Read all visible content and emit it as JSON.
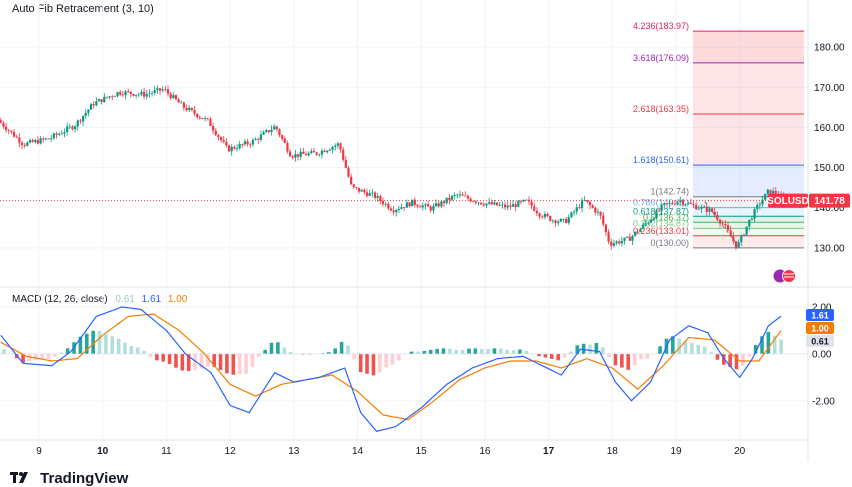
{
  "header": {
    "title": "Auto Fib Retracement (3, 10)"
  },
  "macd": {
    "title": "MACD (12, 26, close)",
    "hist_value": "0.61",
    "macd_value": "1.61",
    "signal_value": "1.00",
    "colors": {
      "macd": "#2962ff",
      "signal": "#f57c00",
      "hist_pos": "#26a69a",
      "hist_neg": "#ef5350"
    }
  },
  "footer": {
    "brand": "TradingView"
  },
  "chart_data": [
    {
      "type": "candlestick",
      "title": "Auto Fib Retracement (3, 10)",
      "symbol": "SOLUSD",
      "last_price": "141.78",
      "x_ticks": [
        "9",
        "10",
        "11",
        "12",
        "13",
        "14",
        "15",
        "16",
        "17",
        "18",
        "19",
        "20"
      ],
      "y_ticks": [
        "130.00",
        "140.00",
        "150.00",
        "160.00",
        "170.00",
        "180.00"
      ],
      "ylim": [
        122,
        188
      ],
      "price_path": [
        {
          "d": 8.4,
          "p": 161.8
        },
        {
          "d": 8.8,
          "p": 155.8
        },
        {
          "d": 9.2,
          "p": 157.2
        },
        {
          "d": 9.6,
          "p": 160.5
        },
        {
          "d": 9.9,
          "p": 166.0
        },
        {
          "d": 10.3,
          "p": 168.8
        },
        {
          "d": 10.7,
          "p": 168.2
        },
        {
          "d": 11.0,
          "p": 169.5
        },
        {
          "d": 11.3,
          "p": 165.2
        },
        {
          "d": 11.7,
          "p": 161.5
        },
        {
          "d": 12.0,
          "p": 154.5
        },
        {
          "d": 12.4,
          "p": 156.5
        },
        {
          "d": 12.75,
          "p": 160.3
        },
        {
          "d": 13.0,
          "p": 153.0
        },
        {
          "d": 13.4,
          "p": 153.6
        },
        {
          "d": 13.75,
          "p": 155.9
        },
        {
          "d": 13.95,
          "p": 145.0
        },
        {
          "d": 14.3,
          "p": 143.0
        },
        {
          "d": 14.6,
          "p": 139.5
        },
        {
          "d": 14.9,
          "p": 141.3
        },
        {
          "d": 15.2,
          "p": 139.8
        },
        {
          "d": 15.6,
          "p": 143.2
        },
        {
          "d": 16.0,
          "p": 141.2
        },
        {
          "d": 16.4,
          "p": 140.2
        },
        {
          "d": 16.7,
          "p": 141.6
        },
        {
          "d": 16.9,
          "p": 138.5
        },
        {
          "d": 17.1,
          "p": 137.0
        },
        {
          "d": 17.3,
          "p": 136.5
        },
        {
          "d": 17.6,
          "p": 141.8
        },
        {
          "d": 17.85,
          "p": 138.2
        },
        {
          "d": 18.0,
          "p": 131.0
        },
        {
          "d": 18.3,
          "p": 132.2
        },
        {
          "d": 18.6,
          "p": 136.5
        },
        {
          "d": 18.85,
          "p": 140.5
        },
        {
          "d": 19.1,
          "p": 141.8
        },
        {
          "d": 19.35,
          "p": 140.3
        },
        {
          "d": 19.6,
          "p": 139.2
        },
        {
          "d": 19.8,
          "p": 135.5
        },
        {
          "d": 20.0,
          "p": 130.2
        },
        {
          "d": 20.2,
          "p": 137.0
        },
        {
          "d": 20.35,
          "p": 141.0
        },
        {
          "d": 20.5,
          "p": 144.2
        },
        {
          "d": 20.6,
          "p": 143.6
        },
        {
          "d": 20.75,
          "p": 141.78
        }
      ],
      "fib_levels": [
        {
          "label": "4.236(183.97)",
          "value": 183.97,
          "color": "#e91e63",
          "fill": "rgba(242,54,69,0.18)"
        },
        {
          "label": "3.618(176.09)",
          "value": 176.09,
          "color": "#9c27b0",
          "fill": "rgba(242,54,69,0.13)"
        },
        {
          "label": "2.618(163.35)",
          "value": 163.35,
          "color": "#f23645",
          "fill": "rgba(242,54,69,0.13)"
        },
        {
          "label": "1.618(150.61)",
          "value": 150.61,
          "color": "#2962ff",
          "fill": "rgba(41,98,255,0.12)"
        },
        {
          "label": "1(142.74)",
          "value": 142.74,
          "color": "#787b86",
          "fill": "rgba(120,123,134,0.10)"
        },
        {
          "label": "0.786(140.01)",
          "value": 140.01,
          "color": "#64b5f6",
          "fill": "rgba(100,181,246,0.15)"
        },
        {
          "label": "0.618(137.87)",
          "value": 137.87,
          "color": "#089981",
          "fill": "rgba(8,153,129,0.12)"
        },
        {
          "label": "0.5(136.37)",
          "value": 136.37,
          "color": "#4caf50",
          "fill": "rgba(76,175,80,0.12)"
        },
        {
          "label": "0.382(134.87)",
          "value": 134.87,
          "color": "#81c784",
          "fill": "rgba(129,199,132,0.12)"
        },
        {
          "label": "0.236(133.01)",
          "value": 133.01,
          "color": "#f23645",
          "fill": "rgba(242,54,69,0.10)"
        },
        {
          "label": "0(130.00)",
          "value": 130.0,
          "color": "#787b86",
          "fill": "rgba(242,54,69,0.08)"
        }
      ],
      "colors": {
        "up": "#089981",
        "down": "#f23645",
        "last_price": "#f23645"
      }
    },
    {
      "type": "line",
      "title": "MACD (12, 26, close)",
      "y_ticks": [
        "2.00",
        "0.00",
        "-2.00"
      ],
      "ylim": [
        -3.5,
        2.3
      ],
      "macd_path": [
        {
          "d": 8.4,
          "v": 0.8
        },
        {
          "d": 8.75,
          "v": -0.4
        },
        {
          "d": 9.2,
          "v": -0.5
        },
        {
          "d": 9.5,
          "v": 0.1
        },
        {
          "d": 9.9,
          "v": 1.6
        },
        {
          "d": 10.3,
          "v": 2.0
        },
        {
          "d": 10.6,
          "v": 1.9
        },
        {
          "d": 11.0,
          "v": 1.0
        },
        {
          "d": 11.3,
          "v": 0.0
        },
        {
          "d": 11.7,
          "v": -0.8
        },
        {
          "d": 12.0,
          "v": -2.2
        },
        {
          "d": 12.3,
          "v": -2.5
        },
        {
          "d": 12.7,
          "v": -0.8
        },
        {
          "d": 13.0,
          "v": -1.2
        },
        {
          "d": 13.4,
          "v": -1.0
        },
        {
          "d": 13.8,
          "v": -0.6
        },
        {
          "d": 14.05,
          "v": -2.5
        },
        {
          "d": 14.3,
          "v": -3.3
        },
        {
          "d": 14.6,
          "v": -3.1
        },
        {
          "d": 15.0,
          "v": -2.3
        },
        {
          "d": 15.4,
          "v": -1.3
        },
        {
          "d": 15.8,
          "v": -0.6
        },
        {
          "d": 16.2,
          "v": -0.2
        },
        {
          "d": 16.6,
          "v": -0.1
        },
        {
          "d": 16.9,
          "v": -0.5
        },
        {
          "d": 17.2,
          "v": -0.9
        },
        {
          "d": 17.5,
          "v": 0.2
        },
        {
          "d": 17.8,
          "v": 0.1
        },
        {
          "d": 18.05,
          "v": -1.2
        },
        {
          "d": 18.3,
          "v": -2.0
        },
        {
          "d": 18.6,
          "v": -1.2
        },
        {
          "d": 18.9,
          "v": 0.6
        },
        {
          "d": 19.2,
          "v": 1.2
        },
        {
          "d": 19.5,
          "v": 0.9
        },
        {
          "d": 19.75,
          "v": -0.2
        },
        {
          "d": 20.0,
          "v": -1.0
        },
        {
          "d": 20.2,
          "v": -0.2
        },
        {
          "d": 20.45,
          "v": 1.2
        },
        {
          "d": 20.65,
          "v": 1.61
        }
      ],
      "signal_path": [
        {
          "d": 8.4,
          "v": 0.5
        },
        {
          "d": 8.8,
          "v": -0.1
        },
        {
          "d": 9.2,
          "v": -0.3
        },
        {
          "d": 9.6,
          "v": -0.2
        },
        {
          "d": 10.0,
          "v": 0.8
        },
        {
          "d": 10.4,
          "v": 1.6
        },
        {
          "d": 10.8,
          "v": 1.7
        },
        {
          "d": 11.2,
          "v": 1.0
        },
        {
          "d": 11.6,
          "v": 0.0
        },
        {
          "d": 12.0,
          "v": -1.3
        },
        {
          "d": 12.4,
          "v": -1.8
        },
        {
          "d": 12.8,
          "v": -1.3
        },
        {
          "d": 13.2,
          "v": -1.1
        },
        {
          "d": 13.6,
          "v": -0.9
        },
        {
          "d": 14.0,
          "v": -1.6
        },
        {
          "d": 14.4,
          "v": -2.6
        },
        {
          "d": 14.8,
          "v": -2.8
        },
        {
          "d": 15.2,
          "v": -2.0
        },
        {
          "d": 15.6,
          "v": -1.1
        },
        {
          "d": 16.0,
          "v": -0.6
        },
        {
          "d": 16.4,
          "v": -0.3
        },
        {
          "d": 16.8,
          "v": -0.3
        },
        {
          "d": 17.2,
          "v": -0.6
        },
        {
          "d": 17.6,
          "v": -0.2
        },
        {
          "d": 18.0,
          "v": -0.6
        },
        {
          "d": 18.4,
          "v": -1.5
        },
        {
          "d": 18.8,
          "v": -0.5
        },
        {
          "d": 19.2,
          "v": 0.7
        },
        {
          "d": 19.6,
          "v": 0.6
        },
        {
          "d": 20.0,
          "v": -0.3
        },
        {
          "d": 20.3,
          "v": -0.3
        },
        {
          "d": 20.65,
          "v": 1.0
        }
      ],
      "histogram": {
        "from": 8.45,
        "to": 20.65,
        "step": 0.1
      }
    }
  ]
}
